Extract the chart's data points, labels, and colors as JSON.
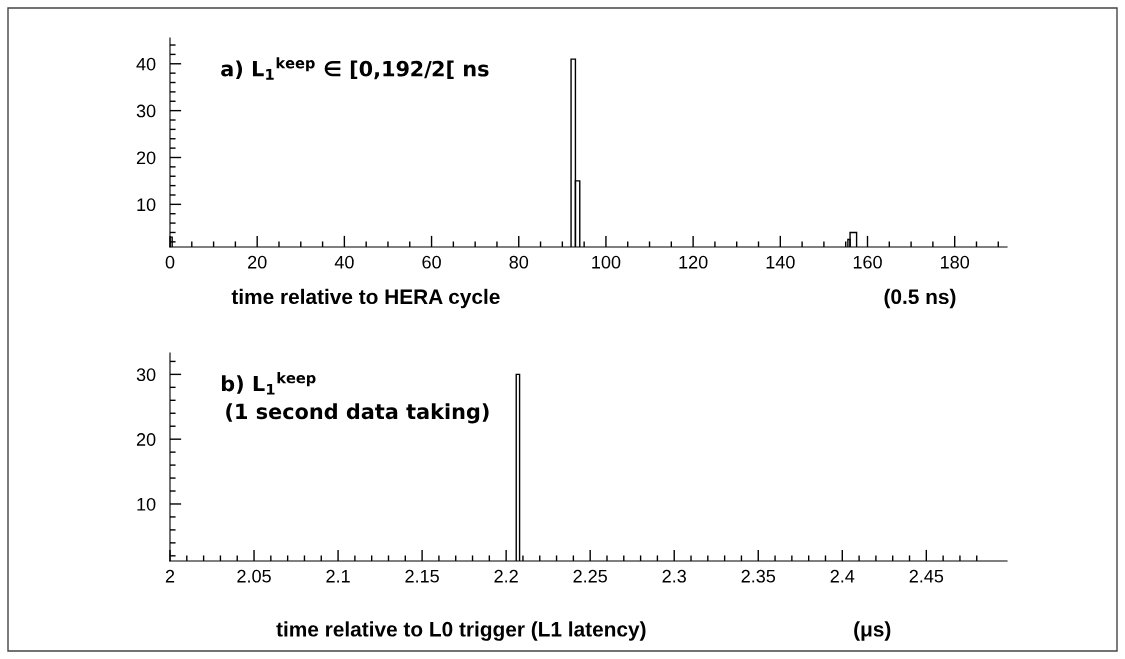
{
  "chart_data": [
    {
      "type": "histogram",
      "xlabel": "time relative to HERA cycle",
      "annotations": [
        "a) L$_{1}$$^{keep}$ ∈ [0,192/2[ ns",
        "(0.5 ns)"
      ],
      "bins": [
        0,
        0.5,
        92,
        93,
        94,
        155.5,
        156,
        157.5
      ],
      "values": [
        3,
        null,
        41,
        15,
        null,
        2.5,
        4
      ],
      "color": "#000000",
      "xlim": [
        0,
        192
      ],
      "ylim": [
        0.9,
        45.5
      ],
      "xticks": [
        0,
        20,
        40,
        60,
        80,
        100,
        120,
        140,
        160,
        180,
        {
          "value": 5,
          "label": null
        },
        {
          "value": 10,
          "label": null
        },
        {
          "value": 15,
          "label": null
        },
        {
          "value": 25,
          "label": null
        },
        {
          "value": 30,
          "label": null
        },
        {
          "value": 35,
          "label": null
        },
        {
          "value": 45,
          "label": null
        },
        {
          "value": 50,
          "label": null
        },
        {
          "value": 55,
          "label": null
        },
        {
          "value": 65,
          "label": null
        },
        {
          "value": 70,
          "label": null
        },
        {
          "value": 75,
          "label": null
        },
        {
          "value": 85,
          "label": null
        },
        {
          "value": 90,
          "label": null
        },
        {
          "value": 95,
          "label": null
        },
        {
          "value": 105,
          "label": null
        },
        {
          "value": 110,
          "label": null
        },
        {
          "value": 115,
          "label": null
        },
        {
          "value": 125,
          "label": null
        },
        {
          "value": 130,
          "label": null
        },
        {
          "value": 135,
          "label": null
        },
        {
          "value": 145,
          "label": null
        },
        {
          "value": 150,
          "label": null
        },
        {
          "value": 155,
          "label": null
        },
        {
          "value": 165,
          "label": null
        },
        {
          "value": 170,
          "label": null
        },
        {
          "value": 175,
          "label": null
        },
        {
          "value": 185,
          "label": null
        },
        {
          "value": 190,
          "label": null
        }
      ],
      "yticks": [
        10,
        20,
        30,
        40,
        {
          "value": 2,
          "label": null
        },
        {
          "value": 4,
          "label": null
        },
        {
          "value": 6,
          "label": null
        },
        {
          "value": 8,
          "label": null
        },
        {
          "value": 12,
          "label": null
        },
        {
          "value": 14,
          "label": null
        },
        {
          "value": 16,
          "label": null
        },
        {
          "value": 18,
          "label": null
        },
        {
          "value": 22,
          "label": null
        },
        {
          "value": 24,
          "label": null
        },
        {
          "value": 26,
          "label": null
        },
        {
          "value": 28,
          "label": null
        },
        {
          "value": 32,
          "label": null
        },
        {
          "value": 34,
          "label": null
        },
        {
          "value": 36,
          "label": null
        },
        {
          "value": 38,
          "label": null
        },
        {
          "value": 42,
          "label": null
        },
        {
          "value": 44,
          "label": null
        }
      ],
      "grid": false
    },
    {
      "type": "histogram",
      "xlabel": "time relative to L0 trigger (L1 latency)",
      "annotations": [
        "b) L$_{1}$$^{keep}$",
        "(1 second data taking)",
        "(μs)"
      ],
      "bins": [
        2.206,
        2.208
      ],
      "values": [
        30
      ],
      "color": "#000000",
      "xlim": [
        2,
        2.498
      ],
      "ylim": [
        1.2,
        33.3
      ],
      "xticks": [
        2,
        2.05,
        2.1,
        2.15,
        2.2,
        2.25,
        2.3,
        2.35,
        2.4,
        2.45,
        {
          "value": 2.01,
          "label": null
        },
        {
          "value": 2.02,
          "label": null
        },
        {
          "value": 2.03,
          "label": null
        },
        {
          "value": 2.04,
          "label": null
        },
        {
          "value": 2.06,
          "label": null
        },
        {
          "value": 2.07,
          "label": null
        },
        {
          "value": 2.08,
          "label": null
        },
        {
          "value": 2.09,
          "label": null
        },
        {
          "value": 2.11,
          "label": null
        },
        {
          "value": 2.12,
          "label": null
        },
        {
          "value": 2.13,
          "label": null
        },
        {
          "value": 2.14,
          "label": null
        },
        {
          "value": 2.16,
          "label": null
        },
        {
          "value": 2.17,
          "label": null
        },
        {
          "value": 2.18,
          "label": null
        },
        {
          "value": 2.19,
          "label": null
        },
        {
          "value": 2.21,
          "label": null
        },
        {
          "value": 2.22,
          "label": null
        },
        {
          "value": 2.23,
          "label": null
        },
        {
          "value": 2.24,
          "label": null
        },
        {
          "value": 2.26,
          "label": null
        },
        {
          "value": 2.27,
          "label": null
        },
        {
          "value": 2.28,
          "label": null
        },
        {
          "value": 2.29,
          "label": null
        },
        {
          "value": 2.31,
          "label": null
        },
        {
          "value": 2.32,
          "label": null
        },
        {
          "value": 2.33,
          "label": null
        },
        {
          "value": 2.34,
          "label": null
        },
        {
          "value": 2.36,
          "label": null
        },
        {
          "value": 2.37,
          "label": null
        },
        {
          "value": 2.38,
          "label": null
        },
        {
          "value": 2.39,
          "label": null
        },
        {
          "value": 2.41,
          "label": null
        },
        {
          "value": 2.42,
          "label": null
        },
        {
          "value": 2.43,
          "label": null
        },
        {
          "value": 2.44,
          "label": null
        },
        {
          "value": 2.46,
          "label": null
        },
        {
          "value": 2.47,
          "label": null
        },
        {
          "value": 2.48,
          "label": null
        }
      ],
      "yticks": [
        10,
        20,
        30,
        {
          "value": 2,
          "label": null
        },
        {
          "value": 4,
          "label": null
        },
        {
          "value": 6,
          "label": null
        },
        {
          "value": 8,
          "label": null
        },
        {
          "value": 12,
          "label": null
        },
        {
          "value": 14,
          "label": null
        },
        {
          "value": 16,
          "label": null
        },
        {
          "value": 18,
          "label": null
        },
        {
          "value": 22,
          "label": null
        },
        {
          "value": 24,
          "label": null
        },
        {
          "value": 26,
          "label": null
        },
        {
          "value": 28,
          "label": null
        },
        {
          "value": 32,
          "label": null
        }
      ],
      "grid": false
    }
  ]
}
